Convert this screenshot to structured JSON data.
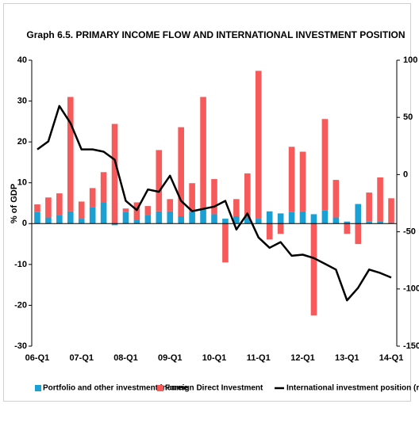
{
  "chart_data": {
    "type": "bar",
    "title": "Graph 6.5. PRIMARY INCOME FLOW AND INTERNATIONAL INVESTMENT POSITION",
    "y_label": "% of GDP",
    "categories": [
      "06-Q1",
      null,
      null,
      null,
      "07-Q1",
      null,
      null,
      null,
      "08-Q1",
      null,
      null,
      null,
      "09-Q1",
      null,
      null,
      null,
      "10-Q1",
      null,
      null,
      null,
      "11-Q1",
      null,
      null,
      null,
      "12-Q1",
      null,
      null,
      null,
      "13-Q1",
      null,
      null,
      null,
      "14-Q1"
    ],
    "series": [
      {
        "name": "Portfolio and other investment income",
        "color": "#1aa0d2",
        "stacked": true,
        "values": [
          2.8,
          1.5,
          2.0,
          3.0,
          1.2,
          4.0,
          5.2,
          -0.4,
          2.8,
          1.0,
          2.0,
          3.0,
          3.0,
          1.8,
          2.8,
          3.5,
          2.3,
          1.2,
          1.8,
          1.5,
          1.2,
          3.0,
          2.5,
          2.8,
          3.0,
          2.3,
          3.2,
          1.5,
          0.5,
          4.8,
          0.5,
          0.6,
          0.3
        ]
      },
      {
        "name": "Foreign Direct Investment",
        "color": "#f65a5a",
        "stacked": true,
        "values": [
          1.9,
          4.9,
          5.4,
          28.0,
          4.2,
          4.7,
          7.4,
          24.4,
          0.9,
          4.2,
          2.3,
          15.0,
          3.0,
          21.8,
          7.1,
          27.5,
          8.6,
          -9.5,
          4.2,
          10.8,
          36.2,
          -3.9,
          -2.5,
          16.0,
          14.6,
          -22.5,
          22.4,
          9.2,
          -2.5,
          -5.0,
          7.1,
          10.7,
          5.9
        ]
      },
      {
        "name": "International investment position (rhs)",
        "color": "#000000",
        "type": "line",
        "axis": "y2",
        "values": [
          22,
          29,
          60,
          45,
          22,
          22,
          20,
          13,
          -23,
          -31,
          -13,
          -15,
          -1,
          -23,
          -32,
          -30,
          -28,
          -23,
          -48,
          -34,
          -55,
          -64,
          -59,
          -71,
          -70,
          -73,
          -78,
          -83,
          -110,
          -99,
          -83,
          -86,
          -90
        ]
      }
    ],
    "ylim": [
      -30,
      40
    ],
    "yticks": [
      -30,
      -20,
      -10,
      0,
      10,
      20,
      30,
      40
    ],
    "y2lim": [
      -150,
      100
    ],
    "y2ticks": [
      -150,
      -100,
      -50,
      0,
      50,
      100
    ],
    "legend": "bottom"
  }
}
